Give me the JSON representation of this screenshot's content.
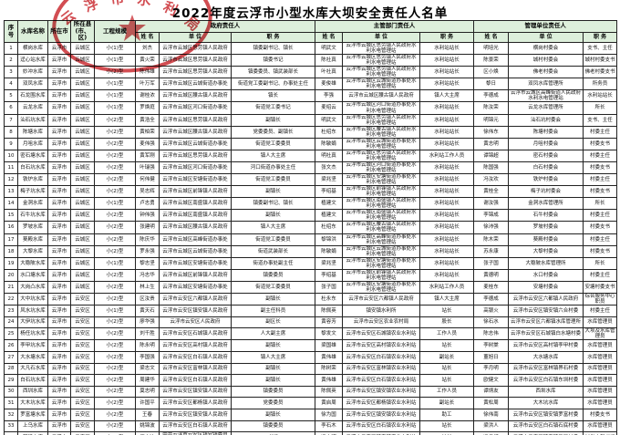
{
  "title": "2022年度云浮市小型水库大坝安全责任人名单",
  "stamp": {
    "name": "云浮市水利局",
    "color": "#c8262c"
  },
  "table": {
    "header_bg": "#ddefdb",
    "base_headers": [
      "序号",
      "水库名称",
      "所在市",
      "所在县(市、区)",
      "工程规模"
    ],
    "group_headers": [
      "政府责任人",
      "主管部门责任人",
      "管理单位责任人"
    ],
    "sub_headers": [
      "姓 名",
      "单 位",
      "职 务"
    ],
    "rows": [
      [
        "1",
        "横岗水库",
        "云浮市",
        "云城区",
        "小(1)型",
        "刘杰",
        "云浮市云城区思劳镇人民政府",
        "镇委副书记、镇长",
        "明武文",
        "云浮市云城区思劳镇人民政府水利水电管理站",
        "水利站站长",
        "明培光",
        "横岗村委会",
        "支书、主任"
      ],
      [
        "2",
        "迳心站水库",
        "云浮市",
        "云城区",
        "小(1)型",
        "黄火荣",
        "云浮市云城区思劳镇人民政府",
        "镇委书记",
        "陈社真",
        "云浮市云城区思劳镇人民政府水利水电管理站",
        "水利站站长",
        "陈景荣",
        "城村村委会",
        "城村村委支书"
      ],
      [
        "3",
        "妙冲水库",
        "云浮市",
        "云城区",
        "小(2)型",
        "陈伟雄",
        "云浮市云城区思劳镇人民政府",
        "镇委委员、镇武装部长",
        "叶社真",
        "云浮市云城区思劳镇人民政府水利水电管理站",
        "水利站站长",
        "区小焕",
        "佛老村委会",
        "佛老村委支书"
      ],
      [
        "4",
        "双凤水库",
        "云浮市",
        "云城区",
        "小(1)型",
        "叶万军",
        "云浮市云城区云城街道办事处",
        "街道党工委副书记、办事处主任",
        "麦俊雄",
        "云浮市云城区云城街道办事处水利水电管理站",
        "水利站站长",
        "黎日",
        "双凤水库管理所",
        "所务员"
      ],
      [
        "5",
        "石龙围水库",
        "云浮市",
        "云城区",
        "小(1)型",
        "谢桂浓",
        "云浮市云城区腰古镇人民政府",
        "镇长",
        "李强",
        "云浮市云城区腰古镇人民政府",
        "镇人大主席",
        "李德成",
        "云浮市云城区高峰街道人民政府水利水电管理站",
        "水利站站长"
      ],
      [
        "6",
        "云龙水库",
        "云浮市",
        "云城区",
        "小(1)型",
        "罗焕庭",
        "云浮市云城区河口街道办事处",
        "街道党工委书记",
        "麦绍云",
        "云浮市云城区河口街道办事处水利水电管理站",
        "水利站站长",
        "陈汝荣",
        "云龙水库管理所",
        "所长"
      ],
      [
        "7",
        "汕石坑水库",
        "云浮市",
        "云城区",
        "小(2)型",
        "黄浩全",
        "云浮市云城区思劳镇人民政府",
        "副镇长",
        "明武文",
        "云浮市云城区思劳镇人民政府水利水电管理站",
        "水利站站长",
        "明锦元",
        "汕石坑村委会",
        "支书、主任"
      ],
      [
        "8",
        "陈塘水库",
        "云浮市",
        "云城区",
        "小(2)型",
        "黄柏荣",
        "云浮市云城区腰古镇人民政府",
        "党委委员、副镇长",
        "杜绍东",
        "云浮市云城区腰古镇人民政府水利水电管理站",
        "水利站站长",
        "徐伟东",
        "陈塘村委会",
        "村委主任"
      ],
      [
        "9",
        "月咀水库",
        "云浮市",
        "云城区",
        "小(2)型",
        "麦伟强",
        "云浮市云城区云城街道办事处",
        "街道党工委委员",
        "陈敏娟",
        "云浮市云城区云城街道办事处水利水电管理站",
        "水利站站长",
        "黄志明",
        "月咀村委会",
        "村委支书"
      ],
      [
        "10",
        "密石塘水库",
        "云浮市",
        "云城区",
        "小(2)型",
        "黄军刚",
        "云浮市云城区思劳镇人民政府",
        "镇人大主席",
        "明社真",
        "云浮市云城区思劳镇人民政府水利水电管理站",
        "水利站工作人员",
        "谭锦超",
        "密石村委会",
        "村委主任"
      ],
      [
        "11",
        "白石坑水库",
        "云浮市",
        "云城区",
        "小(2)型",
        "叶瑞强",
        "云浮市云城区河口街道办事处",
        "河口街道办事处主任",
        "张文杰",
        "云浮市云城区河口街道办事处水利水电管理站",
        "水利站站长",
        "陈国强",
        "白石村委会",
        "村委支书"
      ],
      [
        "12",
        "铁炉水库",
        "云浮市",
        "云城区",
        "小(2)型",
        "何伟健",
        "云浮市云城区安塘街道办事处",
        "街道党工委委员",
        "梁兆坚",
        "云浮市云城区安塘街道办事处水利水电管理站",
        "水利站站长",
        "冯汝欢",
        "铁炉村委会",
        "村委主任"
      ],
      [
        "13",
        "梅子坑水库",
        "云浮市",
        "云城区",
        "小(2)型",
        "吴志辉",
        "云浮市云城区前锋镇人民政府",
        "副镇长",
        "李绍基",
        "云浮市云城区前锋镇人民政府水利水电管理站",
        "水利站站长",
        "黄桂全",
        "梅子坑村委会",
        "村委支书"
      ],
      [
        "14",
        "金洞水库",
        "云浮市",
        "云城区",
        "小(1)型",
        "卢志勇",
        "云浮市云城区南盛镇人民政府",
        "镇委副书记、镇长",
        "植建文",
        "云浮市云城区南盛镇人民政府水利水电管理站",
        "水利站站长",
        "谢汝强",
        "金洞水库管理所",
        "所长"
      ],
      [
        "15",
        "石牛坑水库",
        "云浮市",
        "云城区",
        "小(2)型",
        "钟伟强",
        "云浮市云城区南盛镇人民政府",
        "副镇长",
        "植建文",
        "云浮市云城区南盛镇人民政府水利水电管理站",
        "水利站站长",
        "李锦成",
        "石牛村委会",
        "村委主任"
      ],
      [
        "16",
        "罗坡水库",
        "云浮市",
        "云城区",
        "小(2)型",
        "张建明",
        "云浮市云城区腰古镇人民政府",
        "镇人大主席",
        "杜绍东",
        "云浮市云城区腰古镇人民政府水利水电管理站",
        "水利站站长",
        "徐沛强",
        "罗坡村委会",
        "村委支书"
      ],
      [
        "17",
        "葵殿水库",
        "云浮市",
        "云城区",
        "小(2)型",
        "陈庆华",
        "云浮市云城区高峰街道办事处",
        "街道党工委委员",
        "黎锦洪",
        "云浮市云城区高峰街道办事处水利水电管理站",
        "水利站站长",
        "陈木荣",
        "葵殿村委会",
        "村委主任"
      ],
      [
        "18",
        "大黎水库",
        "云浮市",
        "云城区",
        "小(2)型",
        "罗永强",
        "云浮市云城区云城街道办事处",
        "街道武装部长",
        "陈敏娟",
        "云浮市云城区云城街道办事处水利水电管理站",
        "水利站站长",
        "苏永康",
        "大黎村委会",
        "村委支书"
      ],
      [
        "19",
        "大稳陂水库",
        "云浮市",
        "云城区",
        "小(1)型",
        "黎志坚",
        "云浮市云城区安塘街道办事处",
        "街道办事处副主任",
        "梁兆坚",
        "云浮市云城区安塘街道办事处水利水电管理站",
        "水利站站长",
        "张子国",
        "大稳陂水库管理所",
        "所长"
      ],
      [
        "20",
        "水口塘水库",
        "云浮市",
        "云城区",
        "小(2)型",
        "冯志华",
        "云浮市云城区前锋镇人民政府",
        "镇委委员",
        "李绍基",
        "云浮市云城区前锋镇人民政府水利水电管理站",
        "水利站站长",
        "黄德明",
        "水口村委会",
        "村委主任"
      ],
      [
        "21",
        "大岗凸水库",
        "云浮市",
        "云城区",
        "小(2)型",
        "林上生",
        "云浮市云城区安塘街道办事处",
        "街道党工委委员",
        "张子国",
        "云浮市云城区安塘街道办事处水利水电管理站",
        "水利站工作人员",
        "麦桂东",
        "安塘村委会",
        "安塘村委支书"
      ],
      [
        "22",
        "大中坑水库",
        "云浮市",
        "云安区",
        "小(2)型",
        "区汝贵",
        "云浮市云安区六都镇人民政府",
        "副镇长",
        "杜永东",
        "云浮市云安区六都镇人民政府",
        "镇人大主席",
        "李德成",
        "云浮市云安区六都镇人民政府",
        "综合服务中心职员"
      ],
      [
        "23",
        "风水坑水库",
        "云浮市",
        "云安区",
        "小(1)型",
        "黄天石",
        "云浮市云安区镇安镇人民政府",
        "副主任科员",
        "陈佩英",
        "镇安镇水利所",
        "站长",
        "高银火",
        "云浮市云安区镇安镇六合村委",
        "村委主任"
      ],
      [
        "24",
        "大伊坑水库",
        "云浮市",
        "云安区",
        "小(2)型",
        "廖华强",
        "云浮市云安区人民政府",
        "副区长",
        "黄容芳",
        "云浮市云安区农业农村局",
        "股长",
        "徐石水",
        "云浮市云安区六都镇水库管理所",
        "水库管理员"
      ],
      [
        "25",
        "杨任坑水库",
        "云浮市",
        "云安区",
        "小(2)型",
        "刘千胜",
        "云浮市云安区石城镇人民政府",
        "人大副主席",
        "黎发文",
        "云浮市云安区石城镇农业水利站",
        "工作人员",
        "陈志伟",
        "云浮市云安区石城镇白水塘村委",
        "大坝及水库管理员"
      ],
      [
        "26",
        "李甲坑水库",
        "云浮市",
        "云安区",
        "小(2)型",
        "陈永明",
        "云浮市云安区高村镇人民政府",
        "副镇长",
        "梁国雄",
        "云浮市云安区高村镇农业水利站",
        "站长",
        "李树棠",
        "云浮市云安区高村镇李甲村委",
        "水库管理员"
      ],
      [
        "27",
        "大水塘水库",
        "云浮市",
        "云安区",
        "小(2)型",
        "李国强",
        "云浮市云安区白石镇人民政府",
        "镇人大主席",
        "黄伟雄",
        "云浮市云安区白石镇农业水利站",
        "副站长",
        "董旭日",
        "大水塘水库",
        "水库管理员"
      ],
      [
        "28",
        "大凡石水库",
        "云浮市",
        "云安区",
        "小(2)型",
        "梁志文",
        "云浮市云安区富林镇人民政府",
        "副镇长",
        "陈树荣",
        "云浮市云安区富林镇农业水利站",
        "站长",
        "李月明",
        "云浮市云安区富林镇界石村委",
        "水库管理员"
      ],
      [
        "29",
        "白石坑水库",
        "云浮市",
        "云安区",
        "小(2)型",
        "周建华",
        "云浮市云安区白石镇人民政府",
        "副镇长",
        "黄伟雄",
        "云浮市云安区白石镇农业水利站",
        "站长",
        "欧健文",
        "云浮市云安区白石镇东圳村委",
        "水库管理员"
      ],
      [
        "30",
        "西圳水库",
        "云浮市",
        "云安区",
        "小(2)型",
        "莫志明",
        "云浮市云安区镇安镇人民政府",
        "镇委委员",
        "陈佩英",
        "云浮市云安区镇安镇农业水利站",
        "工作人员",
        "谭炳友",
        "西圳水库",
        "水库管理员"
      ],
      [
        "31",
        "大木坑水库",
        "云浮市",
        "云安区",
        "小(2)型",
        "许国平",
        "云浮市云安区都杨镇人民政府",
        "党委委员",
        "黄启周",
        "云浮市云安区都杨镇农业水利站",
        "副站长",
        "黄松周",
        "大木坑水库",
        "水库管理员"
      ],
      [
        "32",
        "罗富塘水库",
        "云浮市",
        "云安区",
        "小(2)型",
        "王春",
        "云浮市云安区镇安镇人民政府",
        "副镇长",
        "徐为国",
        "云浮市云安区镇安镇农业水利站",
        "助工",
        "徐伟南",
        "云浮市云安区镇安镇罗富村委",
        "村委支书"
      ],
      [
        "33",
        "上乌水库",
        "云浮市",
        "云安区",
        "小(2)型",
        "姚锦波",
        "云浮市云安区白石镇人民政府",
        "镇委委员",
        "李石木",
        "云浮市云安区白石镇农业水利站",
        "站长",
        "梁洪人",
        "云浮市云安区白石镇石底村委",
        "水库管理员"
      ],
      [
        "34",
        "榃琅水库",
        "云浮市",
        "云安区",
        "小(2)型",
        "伍水冲",
        "中共云浮市云安区镇安镇委员会",
        "书记",
        "冯志明",
        "云浮市云安区镇安镇农业水利站",
        "站长",
        "冯月娥",
        "云浮市云安区镇安镇民强村委",
        "村党支部书记"
      ]
    ]
  }
}
